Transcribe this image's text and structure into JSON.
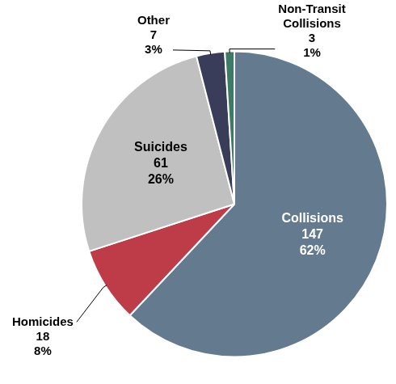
{
  "chart_data": {
    "type": "pie",
    "categories": [
      "Collisions",
      "Homicides",
      "Suicides",
      "Other",
      "Non-Transit Collisions"
    ],
    "values": [
      62,
      8,
      26,
      3,
      1
    ],
    "value_labels": [
      "62%",
      "8%",
      "26%",
      "3%",
      "1%"
    ],
    "counts": [
      147,
      18,
      61,
      7,
      3
    ],
    "colors": [
      "#637a8f",
      "#be3b48",
      "#c0c0c0",
      "#3a3d5a",
      "#3e7a68"
    ],
    "data_labels": true
  }
}
